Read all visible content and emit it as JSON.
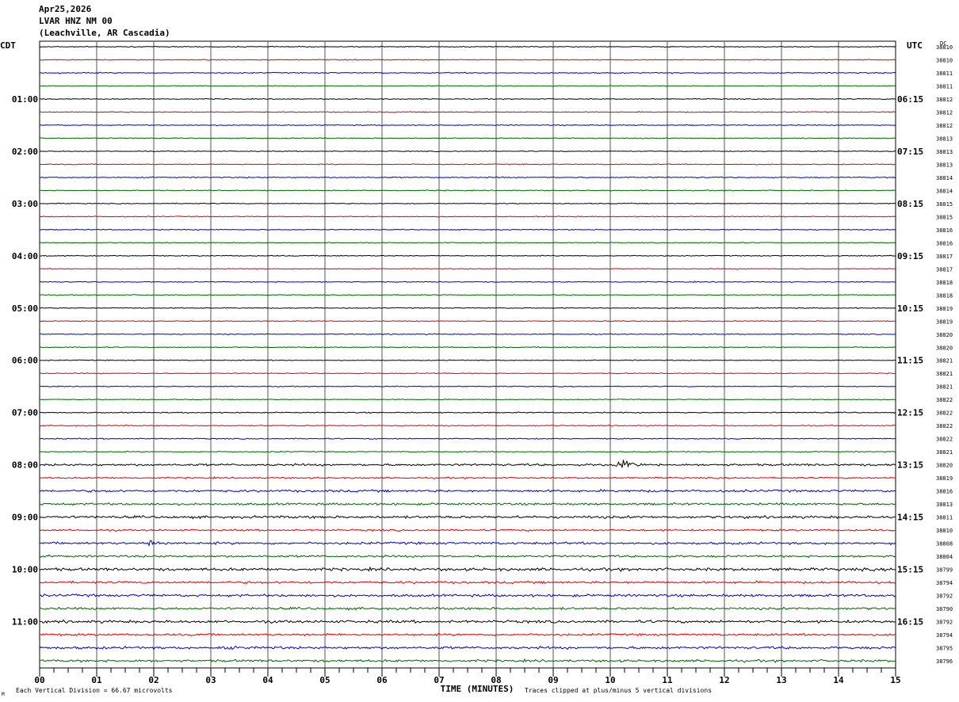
{
  "header": {
    "date": "Apr25,2026",
    "station": "LVAR HNZ NM 00",
    "location": "(Leachville, AR Cascadia)"
  },
  "chart_data": {
    "type": "line",
    "title": "Apr25,2026 LVAR HNZ NM 00 (Leachville, AR Cascadia)",
    "xlabel": "TIME (MINUTES)",
    "xlim": [
      0,
      15
    ],
    "x_ticks": [
      "00",
      "01",
      "02",
      "03",
      "04",
      "05",
      "06",
      "07",
      "08",
      "09",
      "10",
      "11",
      "12",
      "13",
      "14",
      "15"
    ],
    "left_axis_label": "CDT",
    "right_axis_label": "UTC",
    "dc_label": "DC",
    "left_times": [
      "01:00",
      "02:00",
      "03:00",
      "04:00",
      "05:00",
      "06:00",
      "07:00",
      "08:00",
      "09:00",
      "10:00",
      "11:00"
    ],
    "right_times": [
      "06:15",
      "07:15",
      "08:15",
      "09:15",
      "10:15",
      "11:15",
      "12:15",
      "13:15",
      "14:15",
      "15:15",
      "16:15"
    ],
    "trace_colors": [
      "#000000",
      "#e00000",
      "#0000c8",
      "#006400"
    ],
    "dc_offsets": [
      38810,
      38810,
      38811,
      38811,
      38812,
      38812,
      38812,
      38813,
      38813,
      38813,
      38814,
      38814,
      38815,
      38815,
      38816,
      38816,
      38817,
      38817,
      38818,
      38818,
      38819,
      38819,
      38820,
      38820,
      38821,
      38821,
      38821,
      38822,
      38822,
      38822,
      38822,
      38821,
      38820,
      38819,
      38816,
      38813,
      38811,
      38810,
      38808,
      38804,
      38799,
      38794,
      38792,
      38790,
      38792,
      38794,
      38795,
      38796
    ],
    "trace_noise": [
      0.5,
      0.5,
      0.6,
      0.5,
      0.5,
      0.5,
      0.5,
      0.5,
      0.5,
      0.5,
      0.6,
      0.5,
      0.5,
      0.5,
      0.5,
      0.5,
      0.5,
      0.5,
      0.5,
      0.5,
      0.5,
      0.5,
      0.5,
      0.5,
      0.5,
      0.5,
      0.5,
      0.5,
      0.6,
      0.6,
      0.6,
      0.6,
      1.2,
      0.8,
      1.3,
      1.2,
      1.4,
      1.0,
      1.3,
      1.2,
      1.6,
      1.3,
      1.4,
      1.3,
      1.5,
      1.2,
      1.4,
      1.3
    ],
    "events": [
      {
        "trace": 32,
        "minute": 10.15,
        "peak_divisions": 1.3
      },
      {
        "trace": 38,
        "minute": 1.9,
        "peak_divisions": 1.3
      },
      {
        "trace": 46,
        "minute": 3.2,
        "peak_divisions": 0.7
      }
    ],
    "footer_left": "Each Vertical Division =   66.67 microvolts",
    "footer_right": "Traces clipped at plus/minus 5 vertical divisions",
    "corner_mark": "M"
  }
}
